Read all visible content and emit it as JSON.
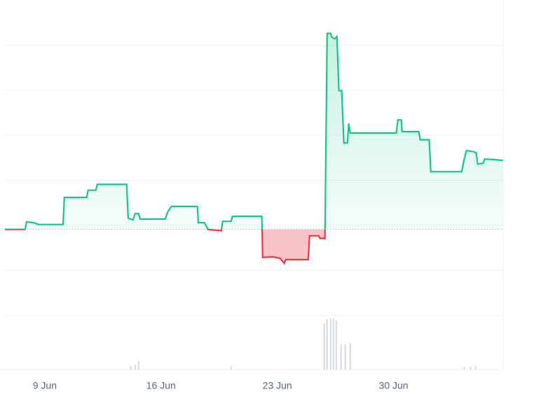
{
  "chart_data": {
    "type": "line",
    "x": [
      6.6,
      7.82,
      7.9,
      8.33,
      8.62,
      10.1,
      10.18,
      11.53,
      11.61,
      12.08,
      12.16,
      13.93,
      14.02,
      14.31,
      14.44,
      14.65,
      14.74,
      16.25,
      16.42,
      16.63,
      18.19,
      18.24,
      18.62,
      18.83,
      19.63,
      19.71,
      20.22,
      20.3,
      22.07,
      22.12,
      22.75,
      23.17,
      23.42,
      23.51,
      24.86,
      24.94,
      25.49,
      25.58,
      25.87,
      26.0,
      26.21,
      26.29,
      26.46,
      26.59,
      26.71,
      26.88,
      27.01,
      27.22,
      27.3,
      27.39,
      30.17,
      30.26,
      30.47,
      30.51,
      31.52,
      31.61,
      32.15,
      32.24,
      34.1,
      34.23,
      34.39,
      34.77,
      34.98,
      35.06,
      35.4,
      35.48,
      36.03,
      36.58
    ],
    "series": [
      {
        "color": "#16c784",
        "values": [
          2.91,
          2.91,
          3.08,
          3.06,
          3.02,
          3.02,
          3.62,
          3.62,
          3.78,
          3.78,
          3.91,
          3.91,
          3.16,
          3.12,
          3.26,
          3.26,
          3.14,
          3.14,
          3.31,
          3.42,
          3.42,
          3.06,
          3.06,
          2.91,
          2.88,
          3.09,
          3.09,
          3.2,
          3.2,
          2.29,
          2.3,
          2.27,
          2.16,
          2.24,
          2.24,
          2.77,
          2.77,
          2.71,
          2.71,
          7.26,
          7.26,
          7.17,
          7.14,
          7.19,
          5.99,
          5.99,
          4.83,
          4.83,
          5.26,
          5.05,
          5.05,
          5.34,
          5.34,
          5.08,
          5.08,
          4.9,
          4.9,
          4.19,
          4.19,
          4.43,
          4.66,
          4.64,
          4.61,
          4.36,
          4.38,
          4.47,
          4.46,
          4.44
        ]
      }
    ],
    "baseline": 2.91,
    "below_color": "#ea3943",
    "xlim": [
      6.6,
      36.6
    ],
    "xticks": [
      {
        "value": 9,
        "label": "9 Jun"
      },
      {
        "value": 16,
        "label": "16 Jun"
      },
      {
        "value": 23,
        "label": "23 Jun"
      },
      {
        "value": 30,
        "label": "30 Jun"
      }
    ],
    "ylim": [
      -0.2,
      8
    ],
    "grid_y": [
      1,
      2,
      3,
      4,
      5,
      6,
      7
    ],
    "volume": {
      "color": "#d5d9e0",
      "ylim": [
        0,
        78
      ],
      "x": [
        14.19,
        14.44,
        14.65,
        20.22,
        25.83,
        26.0,
        26.21,
        26.38,
        26.55,
        26.84,
        27.09,
        27.39,
        34.26,
        34.64,
        34.94
      ],
      "values": [
        5,
        7,
        12,
        5,
        66,
        72,
        73,
        73,
        70,
        36,
        36,
        38,
        4,
        4,
        5
      ]
    }
  }
}
